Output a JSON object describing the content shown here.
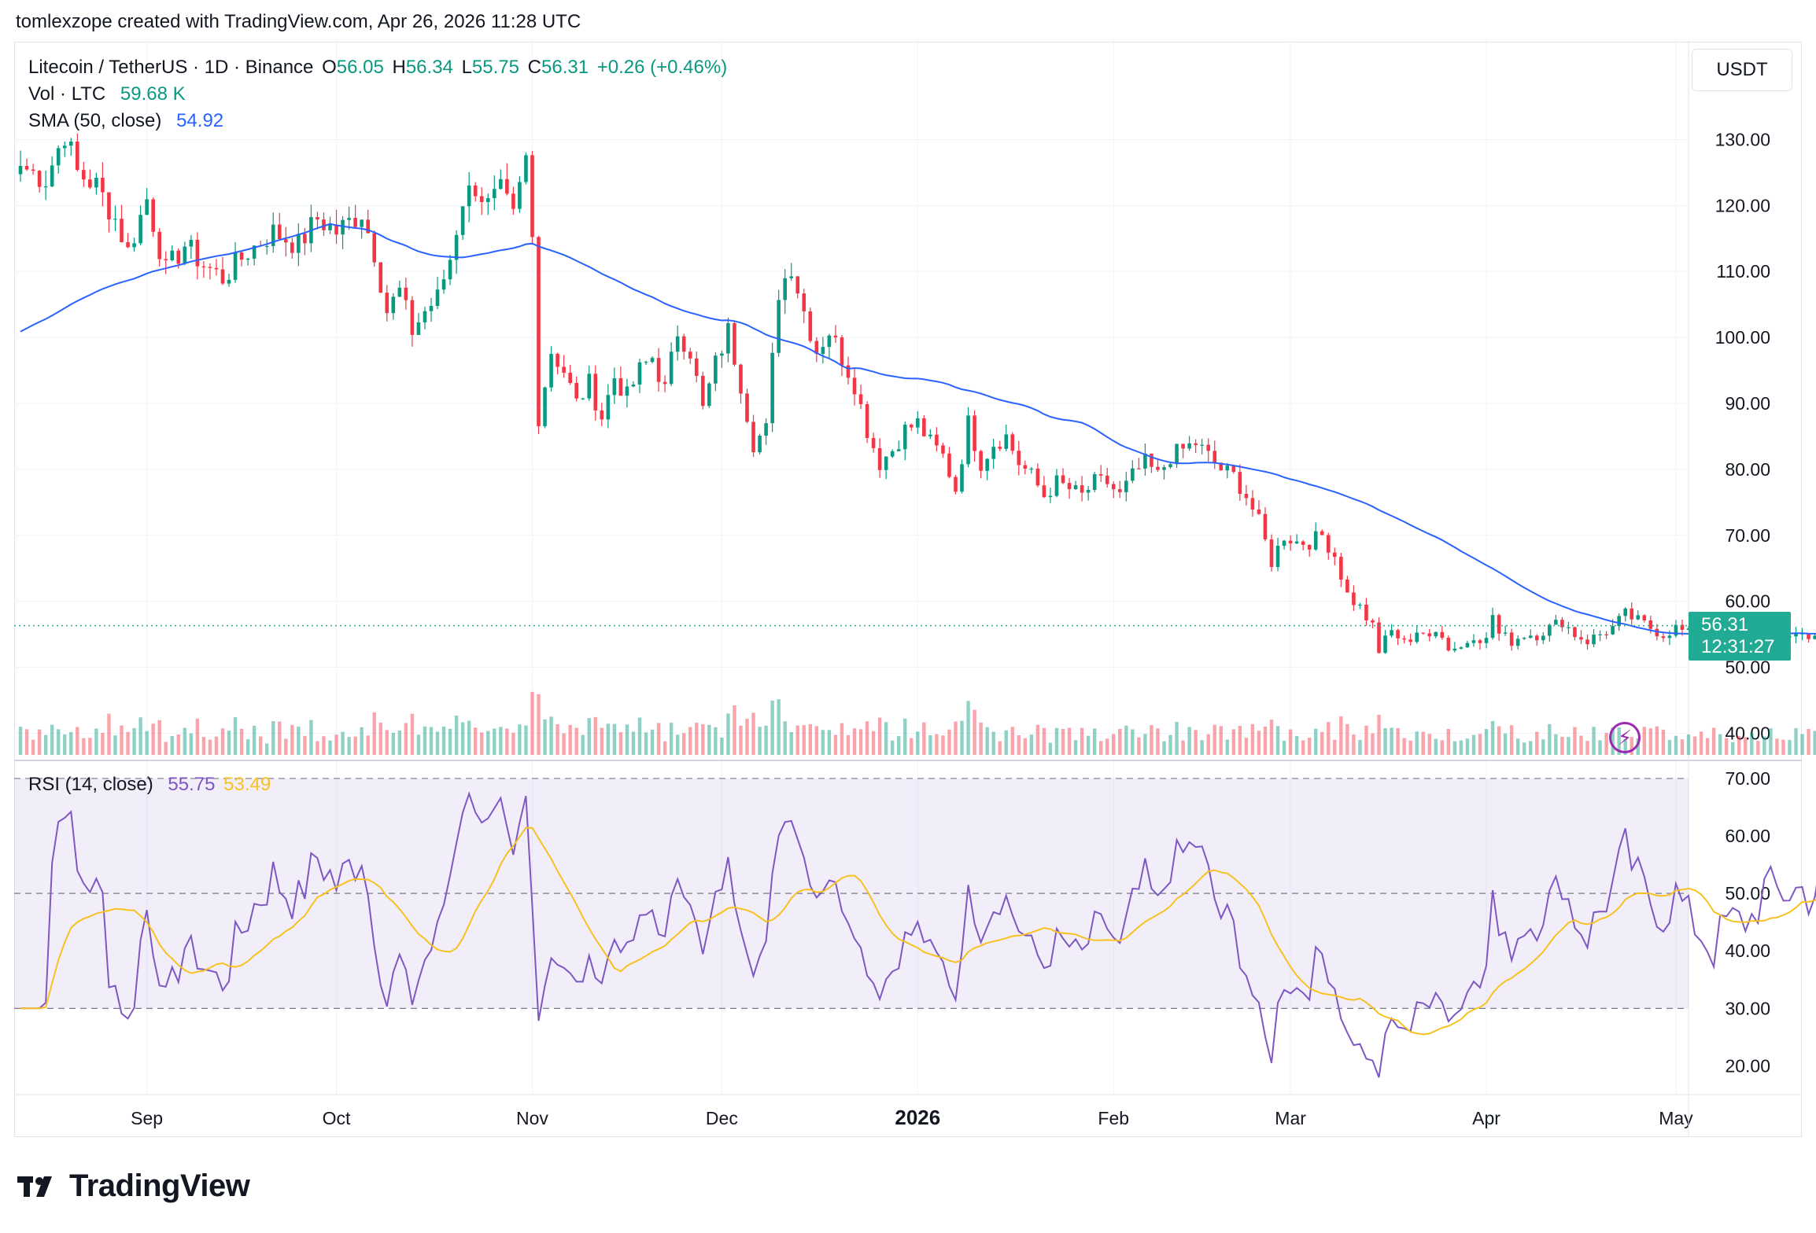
{
  "header": {
    "credit": "tomlexzope created with TradingView.com, Apr 26, 2026 11:28 UTC"
  },
  "legend": {
    "symbol": "Litecoin / TetherUS · 1D · Binance",
    "o_label": "O",
    "o_value": "56.05",
    "h_label": "H",
    "h_value": "56.34",
    "l_label": "L",
    "l_value": "55.75",
    "c_label": "C",
    "c_value": "56.31",
    "change": "+0.26 (+0.46%)",
    "vol_label": "Vol · LTC",
    "vol_value": "59.68 K",
    "sma_label": "SMA (50, close)",
    "sma_value": "54.92",
    "rsi_label": "RSI (14, close)",
    "rsi_value": "55.75",
    "rsi_ma_value": "53.49"
  },
  "currency": "USDT",
  "price_tag": {
    "price": "56.31",
    "countdown": "12:31:27"
  },
  "colors": {
    "up": "#089981",
    "down": "#f23645",
    "sma": "#2962ff",
    "rsi": "#7e57c2",
    "rsi_ma": "#f7c221"
  },
  "logo_text": "TradingView",
  "chart_data": [
    {
      "type": "candlestick",
      "title": "Litecoin / TetherUS · 1D · Binance",
      "x_range": [
        "2025-08-11",
        "2026-05-03"
      ],
      "ylim": [
        36,
        144
      ],
      "y_ticks": [
        "40.00",
        "50.00",
        "60.00",
        "70.00",
        "80.00",
        "90.00",
        "100.00",
        "110.00",
        "120.00",
        "130.00"
      ],
      "x_ticks": [
        {
          "date": "2025-09-01",
          "label": "Sep"
        },
        {
          "date": "2025-10-01",
          "label": "Oct"
        },
        {
          "date": "2025-11-01",
          "label": "Nov"
        },
        {
          "date": "2025-12-01",
          "label": "Dec"
        },
        {
          "date": "2026-01-01",
          "label": "2026"
        },
        {
          "date": "2026-02-01",
          "label": "Feb"
        },
        {
          "date": "2026-03-01",
          "label": "Mar"
        },
        {
          "date": "2026-04-01",
          "label": "Apr"
        },
        {
          "date": "2026-05-01",
          "label": "May"
        }
      ],
      "first_date": "2025-08-12",
      "close_anchors": [
        [
          0,
          126
        ],
        [
          4,
          124
        ],
        [
          7,
          131
        ],
        [
          9,
          125
        ],
        [
          12,
          123
        ],
        [
          15,
          118
        ],
        [
          17,
          113
        ],
        [
          20,
          121
        ],
        [
          23,
          110
        ],
        [
          26,
          114
        ],
        [
          29,
          111
        ],
        [
          32,
          109
        ],
        [
          36,
          113
        ],
        [
          40,
          116
        ],
        [
          44,
          114
        ],
        [
          47,
          118
        ],
        [
          50,
          116
        ],
        [
          54,
          119
        ],
        [
          56,
          113
        ],
        [
          58,
          104
        ],
        [
          60,
          107
        ],
        [
          62,
          101
        ],
        [
          64,
          104
        ],
        [
          66,
          106
        ],
        [
          68,
          112
        ],
        [
          70,
          121
        ],
        [
          72,
          123
        ],
        [
          74,
          120
        ],
        [
          76,
          122
        ],
        [
          78,
          118
        ],
        [
          80,
          127
        ],
        [
          81,
          115
        ],
        [
          82,
          88
        ],
        [
          84,
          98
        ],
        [
          86,
          95
        ],
        [
          88,
          90
        ],
        [
          90,
          93
        ],
        [
          92,
          88
        ],
        [
          94,
          94
        ],
        [
          96,
          91
        ],
        [
          98,
          95
        ],
        [
          100,
          97
        ],
        [
          102,
          92
        ],
        [
          104,
          101
        ],
        [
          106,
          98
        ],
        [
          108,
          89
        ],
        [
          110,
          96
        ],
        [
          112,
          101
        ],
        [
          114,
          93
        ],
        [
          116,
          84
        ],
        [
          118,
          86
        ],
        [
          120,
          107
        ],
        [
          122,
          111
        ],
        [
          124,
          104
        ],
        [
          126,
          98
        ],
        [
          128,
          101
        ],
        [
          130,
          97
        ],
        [
          132,
          93
        ],
        [
          134,
          86
        ],
        [
          136,
          81
        ],
        [
          138,
          83
        ],
        [
          140,
          86
        ],
        [
          142,
          87
        ],
        [
          144,
          84
        ],
        [
          146,
          82
        ],
        [
          148,
          77
        ],
        [
          150,
          87
        ],
        [
          152,
          81
        ],
        [
          154,
          84
        ],
        [
          156,
          85
        ],
        [
          158,
          81
        ],
        [
          160,
          79
        ],
        [
          162,
          76
        ],
        [
          164,
          78
        ],
        [
          166,
          77
        ],
        [
          168,
          76
        ],
        [
          170,
          78
        ],
        [
          172,
          78
        ],
        [
          174,
          76
        ],
        [
          176,
          79
        ],
        [
          178,
          81
        ],
        [
          180,
          79
        ],
        [
          182,
          82
        ],
        [
          184,
          83
        ],
        [
          186,
          84
        ],
        [
          188,
          82
        ],
        [
          190,
          80
        ],
        [
          192,
          79
        ],
        [
          194,
          76
        ],
        [
          196,
          72
        ],
        [
          198,
          66
        ],
        [
          200,
          70
        ],
        [
          202,
          69
        ],
        [
          204,
          69
        ],
        [
          206,
          70
        ],
        [
          208,
          67
        ],
        [
          210,
          61
        ],
        [
          212,
          59
        ],
        [
          214,
          56
        ],
        [
          215,
          52
        ],
        [
          216,
          55
        ],
        [
          218,
          55
        ],
        [
          220,
          54
        ],
        [
          222,
          55
        ],
        [
          224,
          56
        ],
        [
          226,
          53
        ],
        [
          228,
          53
        ],
        [
          230,
          55
        ],
        [
          232,
          54
        ],
        [
          233,
          58
        ],
        [
          234,
          55
        ],
        [
          236,
          54
        ],
        [
          238,
          55
        ],
        [
          240,
          55
        ],
        [
          242,
          56
        ],
        [
          244,
          57
        ],
        [
          246,
          55
        ],
        [
          248,
          54
        ],
        [
          250,
          55
        ],
        [
          252,
          56
        ],
        [
          254,
          58
        ],
        [
          256,
          57
        ],
        [
          258,
          56
        ],
        [
          260,
          55
        ],
        [
          262,
          56
        ],
        [
          264,
          55
        ],
        [
          266,
          54
        ],
        [
          268,
          53
        ],
        [
          270,
          54
        ],
        [
          272,
          54
        ],
        [
          274,
          54
        ],
        [
          276,
          55
        ],
        [
          278,
          55
        ],
        [
          280,
          55
        ],
        [
          282,
          55
        ],
        [
          284,
          55
        ],
        [
          286,
          56
        ],
        [
          288,
          56
        ],
        [
          290,
          56
        ],
        [
          292,
          56
        ],
        [
          294,
          56
        ],
        [
          296,
          56.31
        ]
      ],
      "sma": {
        "name": "SMA (50, close)",
        "last": 54.92
      }
    },
    {
      "type": "bar",
      "title": "Vol · LTC",
      "last_value": "59.68 K"
    },
    {
      "type": "line",
      "title": "RSI (14, close)",
      "ylim": [
        15,
        73
      ],
      "y_ticks": [
        "20.00",
        "30.00",
        "40.00",
        "50.00",
        "60.00",
        "70.00"
      ],
      "bands": [
        30,
        50,
        70
      ],
      "series": [
        {
          "name": "RSI",
          "last": 55.75
        },
        {
          "name": "RSI MA",
          "last": 53.49
        }
      ]
    }
  ]
}
